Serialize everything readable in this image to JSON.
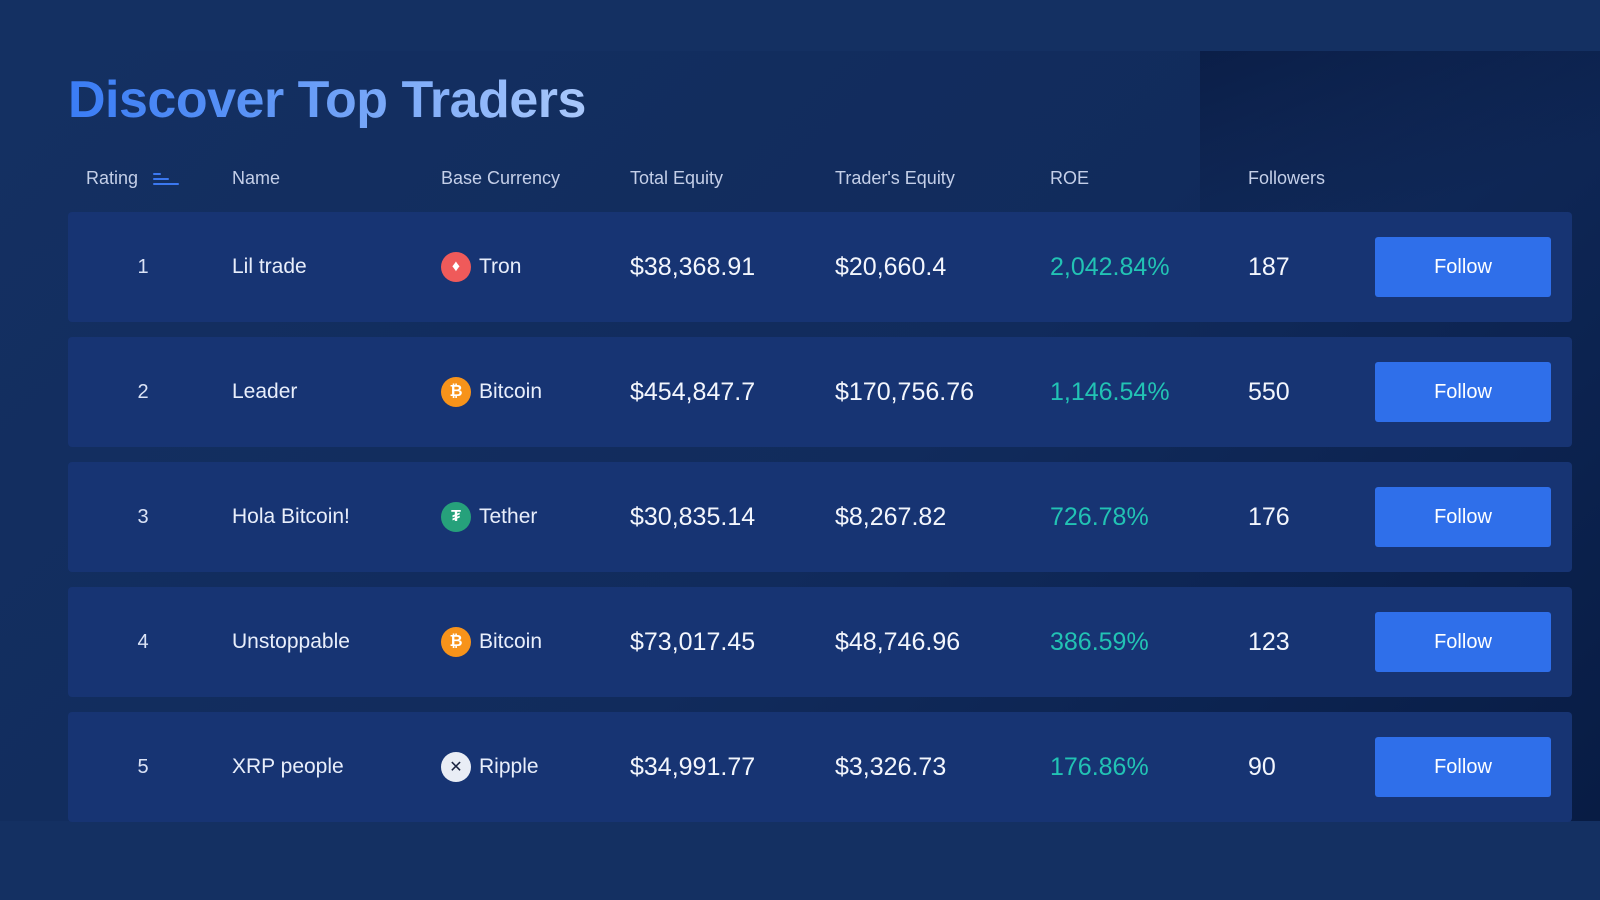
{
  "page": {
    "title": "Discover Top Traders"
  },
  "table": {
    "headers": {
      "rating": "Rating",
      "name": "Name",
      "base_currency": "Base Currency",
      "total_equity": "Total Equity",
      "traders_equity": "Trader's Equity",
      "roe": "ROE",
      "followers": "Followers"
    },
    "sort_icon": "sort-icon",
    "rows": [
      {
        "rating": "1",
        "name": "Lil trade",
        "currency": "Tron",
        "currency_icon": "tron-icon",
        "currency_color": "#ef5a5a",
        "currency_glyph": "♦",
        "total_equity": "$38,368.91",
        "traders_equity": "$20,660.4",
        "roe": "2,042.84%",
        "followers": "187",
        "action_label": "Follow"
      },
      {
        "rating": "2",
        "name": "Leader",
        "currency": "Bitcoin",
        "currency_icon": "bitcoin-icon",
        "currency_color": "#f7931a",
        "currency_glyph": "₿",
        "total_equity": "$454,847.7",
        "traders_equity": "$170,756.76",
        "roe": "1,146.54%",
        "followers": "550",
        "action_label": "Follow"
      },
      {
        "rating": "3",
        "name": "Hola Bitcoin!",
        "currency": "Tether",
        "currency_icon": "tether-icon",
        "currency_color": "#26a17b",
        "currency_glyph": "₮",
        "total_equity": "$30,835.14",
        "traders_equity": "$8,267.82",
        "roe": "726.78%",
        "followers": "176",
        "action_label": "Follow"
      },
      {
        "rating": "4",
        "name": "Unstoppable",
        "currency": "Bitcoin",
        "currency_icon": "bitcoin-icon",
        "currency_color": "#f7931a",
        "currency_glyph": "₿",
        "total_equity": "$73,017.45",
        "traders_equity": "$48,746.96",
        "roe": "386.59%",
        "followers": "123",
        "action_label": "Follow"
      },
      {
        "rating": "5",
        "name": "XRP people",
        "currency": "Ripple",
        "currency_icon": "ripple-icon",
        "currency_color": "#e9edf5",
        "currency_glyph": "✕",
        "total_equity": "$34,991.77",
        "traders_equity": "$3,326.73",
        "roe": "176.86%",
        "followers": "90",
        "action_label": "Follow"
      }
    ]
  },
  "colors": {
    "background": "#143062",
    "row_background": "#173473",
    "accent_button": "#2f6fea",
    "roe_positive": "#22c3b4",
    "title_gradient_start": "#3a7cf5",
    "title_gradient_end": "#a9c8fb"
  }
}
